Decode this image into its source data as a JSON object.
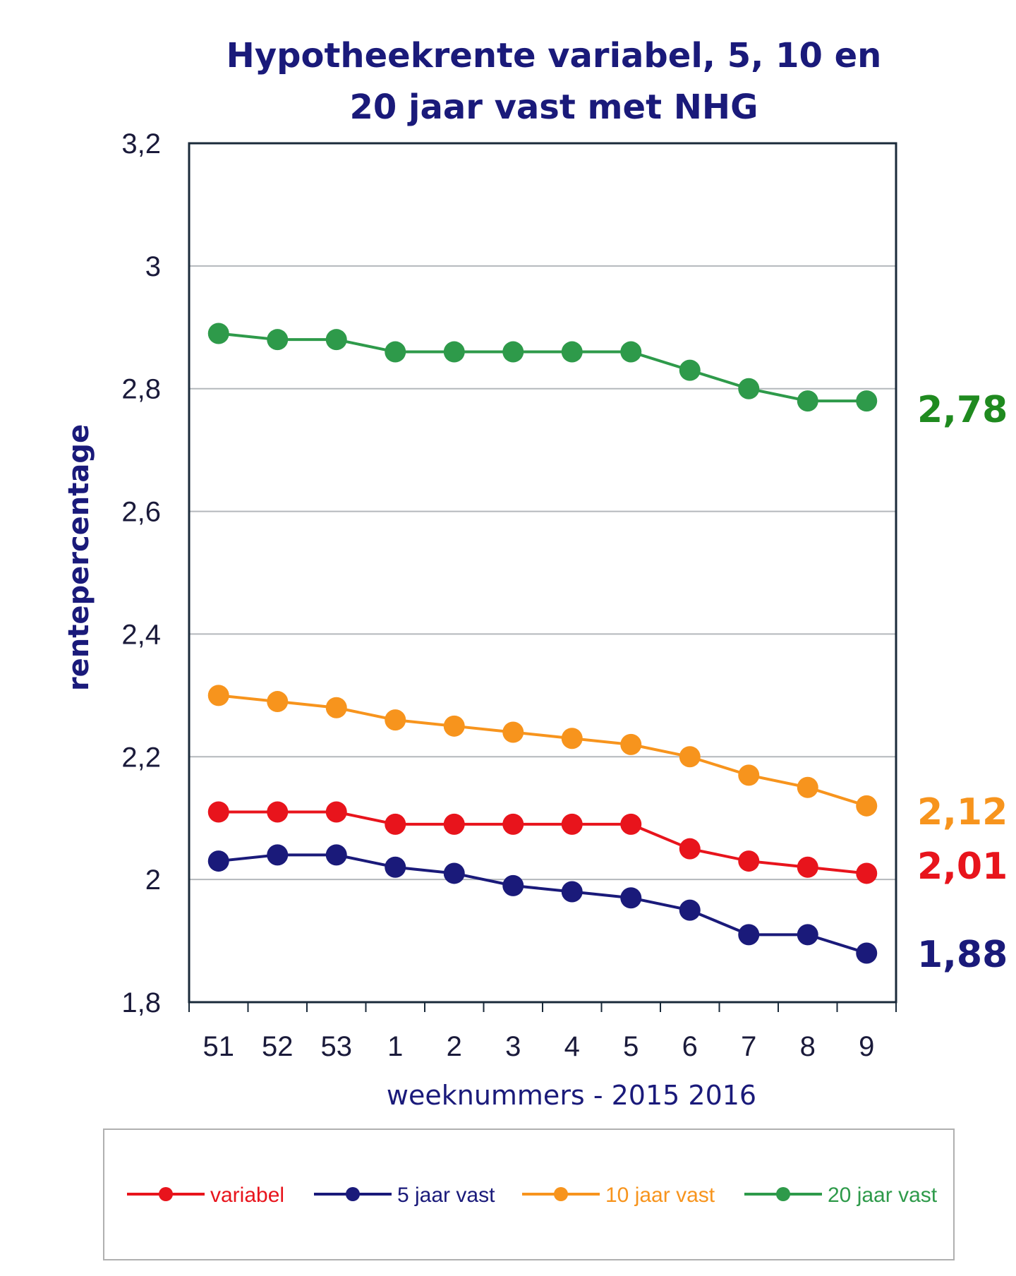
{
  "chart_data": {
    "type": "line",
    "title_line1": "Hypotheekrente variabel, 5, 10 en",
    "title_line2": "20 jaar vast met NHG",
    "xlabel": "weeknummers - 2015 2016",
    "ylabel": "rentepercentage",
    "ylim": [
      1.8,
      3.2
    ],
    "yticks": [
      1.8,
      2,
      2.2,
      2.4,
      2.6,
      2.8,
      3,
      3.2
    ],
    "ytick_labels": [
      "1,8",
      "2",
      "2,2",
      "2,4",
      "2,6",
      "2,8",
      "3",
      "3,2"
    ],
    "categories": [
      "51",
      "52",
      "53",
      "1",
      "2",
      "3",
      "4",
      "5",
      "6",
      "7",
      "8",
      "9"
    ],
    "grid": true,
    "legend_position": "bottom",
    "series": [
      {
        "name": "variabel",
        "color": "#e8141c",
        "values": [
          2.11,
          2.11,
          2.11,
          2.09,
          2.09,
          2.09,
          2.09,
          2.09,
          2.05,
          2.03,
          2.02,
          2.01
        ],
        "end_label": "2,01"
      },
      {
        "name": "5 jaar vast",
        "color": "#1a1a7a",
        "values": [
          2.03,
          2.04,
          2.04,
          2.02,
          2.01,
          1.99,
          1.98,
          1.97,
          1.95,
          1.91,
          1.91,
          1.88
        ],
        "end_label": "1,88"
      },
      {
        "name": "10 jaar vast",
        "color": "#f7941d",
        "values": [
          2.3,
          2.29,
          2.28,
          2.26,
          2.25,
          2.24,
          2.23,
          2.22,
          2.2,
          2.17,
          2.15,
          2.12
        ],
        "end_label": "2,12"
      },
      {
        "name": "20 jaar vast",
        "color": "#2e9a4a",
        "values": [
          2.89,
          2.88,
          2.88,
          2.86,
          2.86,
          2.86,
          2.86,
          2.86,
          2.83,
          2.8,
          2.78,
          2.78
        ],
        "end_label": "2,78"
      }
    ],
    "end_label_colors": {
      "variabel": "#e8141c",
      "5 jaar vast": "#1a1a7a",
      "10 jaar vast": "#f7941d",
      "20 jaar vast": "#1f8a1f"
    },
    "legend_text_colors": {
      "variabel": "#e8141c",
      "5 jaar vast": "#1a1a7a",
      "10 jaar vast": "#f7941d",
      "20 jaar vast": "#2e9a4a"
    }
  }
}
